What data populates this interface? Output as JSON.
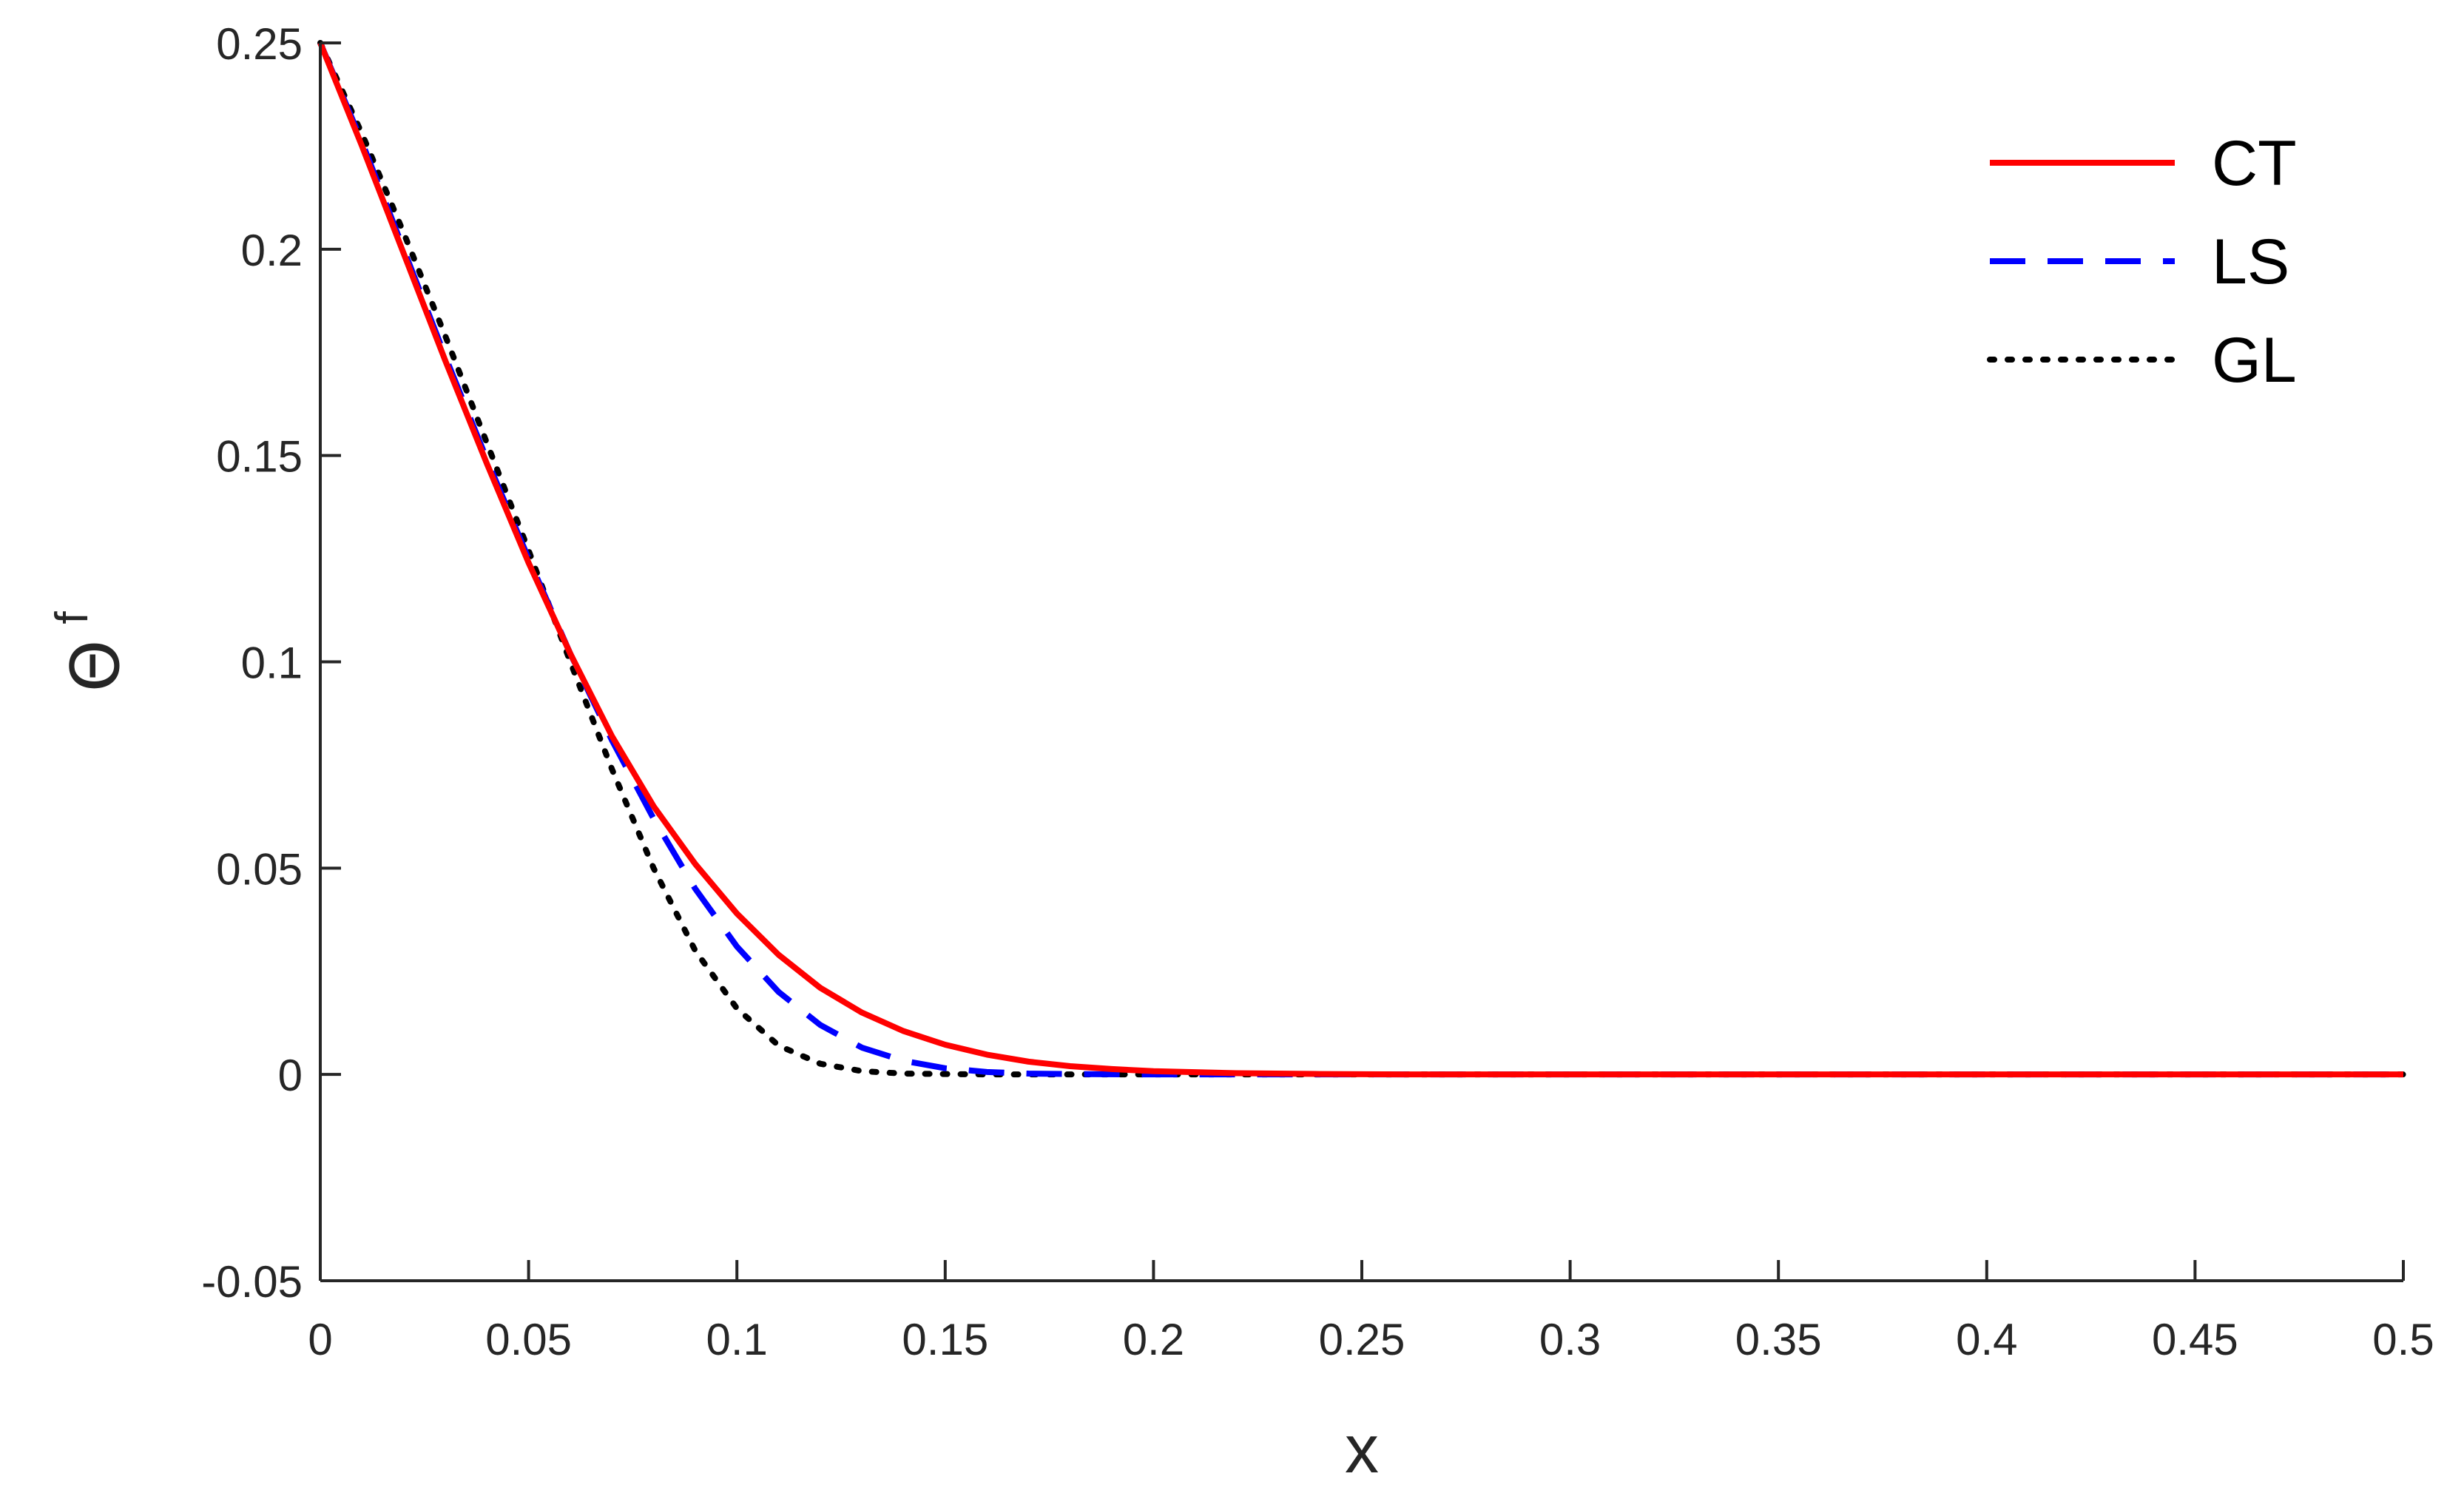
{
  "chart_data": {
    "type": "line",
    "xlabel": "x",
    "ylabel": "Θ",
    "ylabel_superscript": "f",
    "xlim": [
      0,
      0.5
    ],
    "ylim": [
      -0.05,
      0.25
    ],
    "x_ticks": [
      0,
      0.05,
      0.1,
      0.15,
      0.2,
      0.25,
      0.3,
      0.35,
      0.4,
      0.45,
      0.5
    ],
    "x_tick_labels": [
      "0",
      "0.05",
      "0.1",
      "0.15",
      "0.2",
      "0.25",
      "0.3",
      "0.35",
      "0.4",
      "0.45",
      "0.5"
    ],
    "y_ticks": [
      -0.05,
      0,
      0.05,
      0.1,
      0.15,
      0.2,
      0.25
    ],
    "y_tick_labels": [
      "-0.05",
      "0",
      "0.05",
      "0.1",
      "0.15",
      "0.2",
      "0.25"
    ],
    "grid": false,
    "legend_position": "top-right",
    "series": [
      {
        "name": "CT",
        "color": "#ff0000",
        "style": "solid",
        "x": [
          0,
          0.01,
          0.02,
          0.03,
          0.04,
          0.05,
          0.06,
          0.07,
          0.08,
          0.09,
          0.1,
          0.11,
          0.12,
          0.13,
          0.14,
          0.15,
          0.16,
          0.17,
          0.18,
          0.19,
          0.2,
          0.22,
          0.24,
          0.26,
          0.28,
          0.3,
          0.35,
          0.4,
          0.45,
          0.5
        ],
        "values": [
          0.25,
          0.225,
          0.199,
          0.173,
          0.148,
          0.124,
          0.102,
          0.082,
          0.065,
          0.051,
          0.039,
          0.029,
          0.021,
          0.015,
          0.0105,
          0.0072,
          0.0048,
          0.0031,
          0.002,
          0.0013,
          0.0008,
          0.0003,
          0.0001,
          0,
          0,
          0,
          0,
          0,
          0,
          0
        ]
      },
      {
        "name": "LS",
        "color": "#0000ff",
        "style": "dashed",
        "x": [
          0,
          0.01,
          0.02,
          0.03,
          0.04,
          0.05,
          0.06,
          0.07,
          0.08,
          0.09,
          0.1,
          0.11,
          0.12,
          0.13,
          0.14,
          0.15,
          0.16,
          0.17,
          0.18,
          0.2,
          0.25,
          0.3,
          0.35,
          0.4,
          0.45,
          0.5
        ],
        "values": [
          0.25,
          0.226,
          0.2,
          0.174,
          0.149,
          0.125,
          0.102,
          0.081,
          0.062,
          0.045,
          0.031,
          0.02,
          0.012,
          0.0065,
          0.0033,
          0.0015,
          0.0006,
          0.0002,
          0.0001,
          0,
          0,
          0,
          0,
          0,
          0,
          0
        ]
      },
      {
        "name": "GL",
        "color": "#000000",
        "style": "dotted",
        "x": [
          0,
          0.01,
          0.02,
          0.03,
          0.04,
          0.05,
          0.06,
          0.07,
          0.08,
          0.09,
          0.1,
          0.11,
          0.12,
          0.13,
          0.14,
          0.15,
          0.16,
          0.18,
          0.2,
          0.25,
          0.3,
          0.35,
          0.4,
          0.45,
          0.5
        ],
        "values": [
          0.25,
          0.228,
          0.204,
          0.179,
          0.153,
          0.127,
          0.1,
          0.074,
          0.05,
          0.03,
          0.016,
          0.007,
          0.0026,
          0.0008,
          0.0002,
          0.0001,
          0,
          0,
          0,
          0,
          0,
          0,
          0,
          0,
          0
        ]
      }
    ]
  }
}
